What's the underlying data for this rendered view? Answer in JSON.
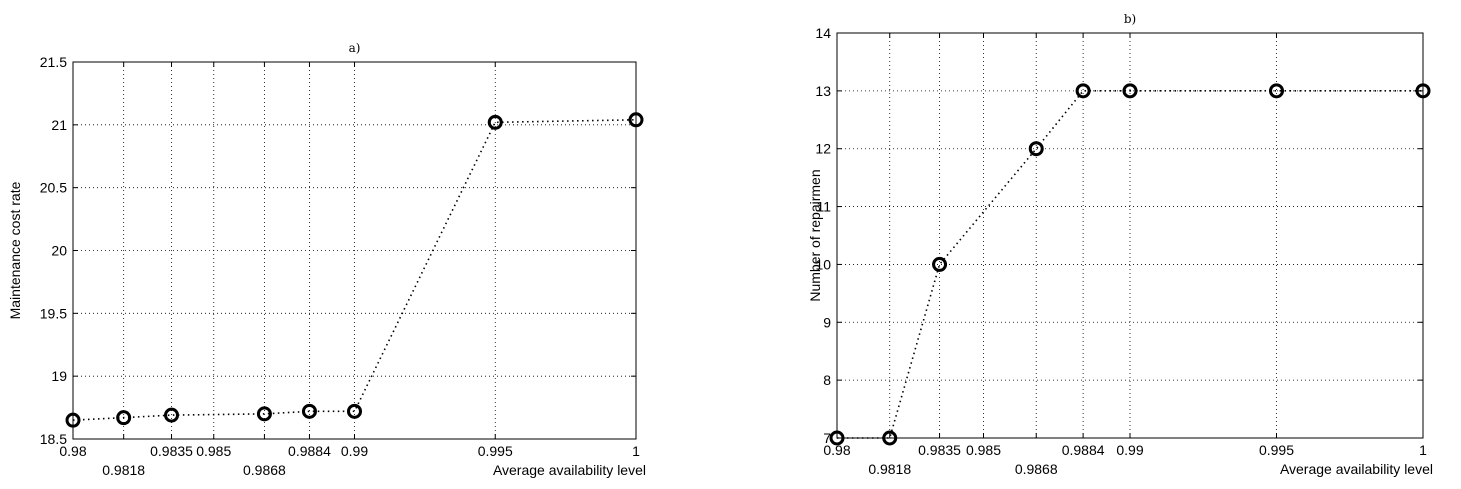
{
  "chart_data": [
    {
      "type": "line",
      "title": "a)",
      "xlabel": "Average availability level",
      "ylabel": "Maintenance cost rate",
      "xlim": [
        0.98,
        1.0
      ],
      "ylim": [
        18.5,
        21.5
      ],
      "xticks": [
        {
          "value": 0.98,
          "label": "0.98",
          "row": 0
        },
        {
          "value": 0.9818,
          "label": "0.9818",
          "row": 1
        },
        {
          "value": 0.9835,
          "label": "0.9835",
          "row": 0
        },
        {
          "value": 0.985,
          "label": "0.985",
          "row": 0
        },
        {
          "value": 0.9868,
          "label": "0.9868",
          "row": 1
        },
        {
          "value": 0.9884,
          "label": "0.9884",
          "row": 0
        },
        {
          "value": 0.99,
          "label": "0.99",
          "row": 0
        },
        {
          "value": 0.995,
          "label": "0.995",
          "row": 0
        },
        {
          "value": 1.0,
          "label": "1",
          "row": 0
        }
      ],
      "yticks": [
        {
          "value": 18.5,
          "label": "18.5"
        },
        {
          "value": 19,
          "label": "19"
        },
        {
          "value": 19.5,
          "label": "19.5"
        },
        {
          "value": 20,
          "label": "20"
        },
        {
          "value": 20.5,
          "label": "20.5"
        },
        {
          "value": 21,
          "label": "21"
        },
        {
          "value": 21.5,
          "label": "21.5"
        }
      ],
      "grid": true,
      "x": [
        0.98,
        0.9818,
        0.9835,
        0.9868,
        0.9884,
        0.99,
        0.995,
        1.0
      ],
      "y": [
        18.65,
        18.67,
        18.69,
        18.7,
        18.72,
        18.72,
        21.02,
        21.04
      ]
    },
    {
      "type": "line",
      "title": "b)",
      "xlabel": "Average availability level",
      "ylabel": "Number of repairmen",
      "xlim": [
        0.98,
        1.0
      ],
      "ylim": [
        7,
        14
      ],
      "xticks": [
        {
          "value": 0.98,
          "label": "0.98",
          "row": 0
        },
        {
          "value": 0.9818,
          "label": "0.9818",
          "row": 1
        },
        {
          "value": 0.9835,
          "label": "0.9835",
          "row": 0
        },
        {
          "value": 0.985,
          "label": "0.985",
          "row": 0
        },
        {
          "value": 0.9868,
          "label": "0.9868",
          "row": 1
        },
        {
          "value": 0.9884,
          "label": "0.9884",
          "row": 0
        },
        {
          "value": 0.99,
          "label": "0.99",
          "row": 0
        },
        {
          "value": 0.995,
          "label": "0.995",
          "row": 0
        },
        {
          "value": 1.0,
          "label": "1",
          "row": 0
        }
      ],
      "yticks": [
        {
          "value": 7,
          "label": "7"
        },
        {
          "value": 8,
          "label": "8"
        },
        {
          "value": 9,
          "label": "9"
        },
        {
          "value": 10,
          "label": "10"
        },
        {
          "value": 11,
          "label": "11"
        },
        {
          "value": 12,
          "label": "12"
        },
        {
          "value": 13,
          "label": "13"
        },
        {
          "value": 14,
          "label": "14"
        }
      ],
      "grid": true,
      "x": [
        0.98,
        0.9818,
        0.9835,
        0.9868,
        0.9884,
        0.99,
        0.995,
        1.0
      ],
      "y": [
        7,
        7,
        10,
        12,
        13,
        13,
        13,
        13
      ]
    }
  ]
}
